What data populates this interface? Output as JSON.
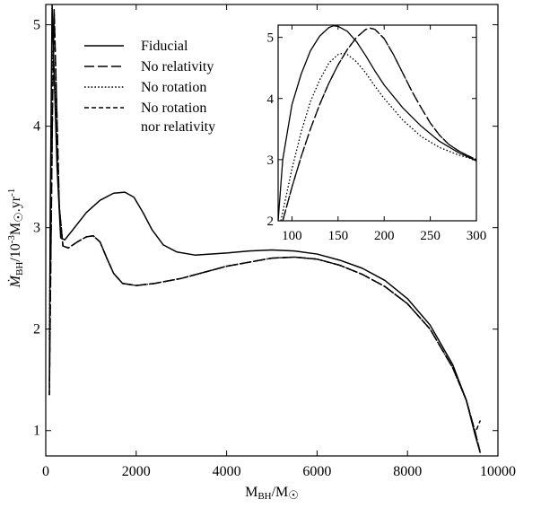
{
  "chart_data": [
    {
      "type": "line",
      "panel": "main",
      "xlabel": "M_BH/M_☉",
      "ylabel": "Ṁ_BH/10^-3 M_☉.yr^-1",
      "xlim": [
        0,
        10000
      ],
      "ylim": [
        0.75,
        5.2
      ],
      "x_ticks": [
        0,
        2000,
        4000,
        6000,
        8000,
        10000
      ],
      "y_ticks": [
        1,
        2,
        3,
        4,
        5
      ],
      "legend_position": "top-left",
      "series": [
        {
          "name": "Fiducial",
          "dash": "solid",
          "points": [
            [
              80,
              1.45
            ],
            [
              100,
              3.2
            ],
            [
              140,
              5.2
            ],
            [
              180,
              4.6
            ],
            [
              250,
              3.6
            ],
            [
              330,
              2.9
            ],
            [
              420,
              2.88
            ],
            [
              600,
              2.98
            ],
            [
              900,
              3.15
            ],
            [
              1200,
              3.27
            ],
            [
              1500,
              3.34
            ],
            [
              1750,
              3.35
            ],
            [
              1950,
              3.3
            ],
            [
              2150,
              3.15
            ],
            [
              2350,
              2.98
            ],
            [
              2600,
              2.83
            ],
            [
              2900,
              2.76
            ],
            [
              3300,
              2.73
            ],
            [
              4000,
              2.75
            ],
            [
              4500,
              2.77
            ],
            [
              5000,
              2.78
            ],
            [
              5500,
              2.77
            ],
            [
              6000,
              2.74
            ],
            [
              6500,
              2.68
            ],
            [
              7000,
              2.6
            ],
            [
              7500,
              2.48
            ],
            [
              8000,
              2.3
            ],
            [
              8500,
              2.04
            ],
            [
              9000,
              1.65
            ],
            [
              9300,
              1.3
            ],
            [
              9500,
              0.95
            ],
            [
              9610,
              0.78
            ]
          ]
        },
        {
          "name": "No relativity",
          "dash": "long-dash",
          "points": [
            [
              80,
              1.35
            ],
            [
              110,
              2.6
            ],
            [
              150,
              4.2
            ],
            [
              185,
              5.15
            ],
            [
              230,
              4.4
            ],
            [
              300,
              3.2
            ],
            [
              380,
              2.82
            ],
            [
              500,
              2.8
            ],
            [
              700,
              2.86
            ],
            [
              900,
              2.91
            ],
            [
              1050,
              2.92
            ],
            [
              1200,
              2.86
            ],
            [
              1350,
              2.7
            ],
            [
              1500,
              2.55
            ],
            [
              1700,
              2.45
            ],
            [
              2000,
              2.43
            ],
            [
              2400,
              2.45
            ],
            [
              3000,
              2.5
            ],
            [
              4000,
              2.62
            ],
            [
              5000,
              2.7
            ],
            [
              5500,
              2.71
            ],
            [
              6000,
              2.69
            ],
            [
              6500,
              2.63
            ],
            [
              7000,
              2.54
            ],
            [
              7500,
              2.42
            ],
            [
              8000,
              2.25
            ],
            [
              8500,
              2.0
            ],
            [
              9000,
              1.62
            ],
            [
              9300,
              1.3
            ],
            [
              9500,
              0.98
            ],
            [
              9600,
              0.8
            ]
          ]
        },
        {
          "name": "No rotation",
          "dash": "dotted",
          "points": [
            [
              80,
              1.9
            ],
            [
              140,
              4.75
            ],
            [
              200,
              4.4
            ],
            [
              300,
              3.2
            ],
            [
              380,
              2.82
            ],
            [
              500,
              2.8
            ],
            [
              700,
              2.86
            ],
            [
              900,
              2.91
            ],
            [
              1050,
              2.92
            ],
            [
              1200,
              2.86
            ],
            [
              1350,
              2.7
            ],
            [
              1500,
              2.55
            ],
            [
              1700,
              2.45
            ],
            [
              2000,
              2.43
            ],
            [
              2400,
              2.45
            ],
            [
              3000,
              2.5
            ],
            [
              4000,
              2.62
            ],
            [
              5000,
              2.7
            ],
            [
              5500,
              2.71
            ],
            [
              6000,
              2.69
            ],
            [
              6500,
              2.63
            ],
            [
              7000,
              2.54
            ],
            [
              7500,
              2.42
            ],
            [
              8000,
              2.25
            ],
            [
              8500,
              2.0
            ],
            [
              9000,
              1.62
            ],
            [
              9300,
              1.3
            ],
            [
              9500,
              0.98
            ],
            [
              9600,
              0.8
            ]
          ]
        },
        {
          "name": "No rotation\nnor relativity",
          "dash": "short-dash",
          "points": [
            [
              80,
              1.35
            ],
            [
              110,
              2.6
            ],
            [
              150,
              4.2
            ],
            [
              185,
              5.15
            ],
            [
              230,
              4.4
            ],
            [
              300,
              3.2
            ],
            [
              380,
              2.82
            ],
            [
              500,
              2.8
            ],
            [
              700,
              2.86
            ],
            [
              900,
              2.91
            ],
            [
              1050,
              2.92
            ],
            [
              1200,
              2.86
            ],
            [
              1350,
              2.7
            ],
            [
              1500,
              2.55
            ],
            [
              1700,
              2.45
            ],
            [
              2000,
              2.43
            ],
            [
              2400,
              2.45
            ],
            [
              3000,
              2.5
            ],
            [
              4000,
              2.62
            ],
            [
              5000,
              2.7
            ],
            [
              5500,
              2.71
            ],
            [
              6000,
              2.69
            ],
            [
              6500,
              2.63
            ],
            [
              7000,
              2.54
            ],
            [
              7500,
              2.42
            ],
            [
              8000,
              2.25
            ],
            [
              8500,
              2.0
            ],
            [
              9000,
              1.62
            ],
            [
              9300,
              1.3
            ],
            [
              9500,
              0.98
            ],
            [
              9610,
              1.1
            ]
          ]
        }
      ]
    },
    {
      "type": "line",
      "panel": "inset",
      "xlim": [
        85,
        300
      ],
      "ylim": [
        2,
        5.2
      ],
      "x_ticks": [
        100,
        150,
        200,
        250,
        300
      ],
      "y_ticks": [
        2,
        3,
        4,
        5
      ],
      "series": [
        {
          "name": "Fiducial",
          "dash": "solid",
          "points": [
            [
              85,
              2.0
            ],
            [
              90,
              3.0
            ],
            [
              100,
              3.9
            ],
            [
              110,
              4.4
            ],
            [
              120,
              4.78
            ],
            [
              130,
              5.02
            ],
            [
              140,
              5.16
            ],
            [
              145,
              5.19
            ],
            [
              150,
              5.18
            ],
            [
              160,
              5.1
            ],
            [
              170,
              4.93
            ],
            [
              180,
              4.7
            ],
            [
              190,
              4.45
            ],
            [
              200,
              4.22
            ],
            [
              220,
              3.85
            ],
            [
              240,
              3.55
            ],
            [
              260,
              3.3
            ],
            [
              280,
              3.12
            ],
            [
              300,
              2.98
            ]
          ]
        },
        {
          "name": "No relativity",
          "dash": "long-dash",
          "points": [
            [
              90,
              2.0
            ],
            [
              100,
              2.55
            ],
            [
              110,
              3.05
            ],
            [
              120,
              3.5
            ],
            [
              130,
              3.9
            ],
            [
              140,
              4.25
            ],
            [
              150,
              4.55
            ],
            [
              160,
              4.8
            ],
            [
              170,
              5.0
            ],
            [
              180,
              5.13
            ],
            [
              185,
              5.15
            ],
            [
              190,
              5.13
            ],
            [
              200,
              4.98
            ],
            [
              210,
              4.72
            ],
            [
              220,
              4.42
            ],
            [
              230,
              4.12
            ],
            [
              240,
              3.85
            ],
            [
              250,
              3.6
            ],
            [
              260,
              3.4
            ],
            [
              270,
              3.25
            ],
            [
              280,
              3.15
            ],
            [
              290,
              3.07
            ],
            [
              300,
              3.0
            ]
          ]
        },
        {
          "name": "No rotation",
          "dash": "dotted",
          "points": [
            [
              88,
              2.0
            ],
            [
              100,
              2.85
            ],
            [
              110,
              3.45
            ],
            [
              120,
              3.95
            ],
            [
              130,
              4.3
            ],
            [
              140,
              4.58
            ],
            [
              150,
              4.72
            ],
            [
              155,
              4.74
            ],
            [
              160,
              4.72
            ],
            [
              170,
              4.6
            ],
            [
              180,
              4.42
            ],
            [
              190,
              4.2
            ],
            [
              200,
              4.0
            ],
            [
              220,
              3.65
            ],
            [
              240,
              3.38
            ],
            [
              260,
              3.2
            ],
            [
              280,
              3.08
            ],
            [
              300,
              2.99
            ]
          ]
        },
        {
          "name": "No rotation\nnor relativity",
          "dash": "short-dash",
          "points": [
            [
              90,
              2.0
            ],
            [
              100,
              2.55
            ],
            [
              110,
              3.05
            ],
            [
              120,
              3.5
            ],
            [
              130,
              3.9
            ],
            [
              140,
              4.25
            ],
            [
              150,
              4.55
            ],
            [
              160,
              4.8
            ],
            [
              170,
              5.0
            ],
            [
              180,
              5.13
            ],
            [
              185,
              5.15
            ],
            [
              190,
              5.13
            ],
            [
              200,
              4.98
            ],
            [
              210,
              4.72
            ],
            [
              220,
              4.42
            ],
            [
              230,
              4.12
            ],
            [
              240,
              3.85
            ],
            [
              250,
              3.6
            ],
            [
              260,
              3.4
            ],
            [
              270,
              3.25
            ],
            [
              280,
              3.15
            ],
            [
              290,
              3.07
            ],
            [
              300,
              3.0
            ]
          ]
        }
      ]
    }
  ]
}
